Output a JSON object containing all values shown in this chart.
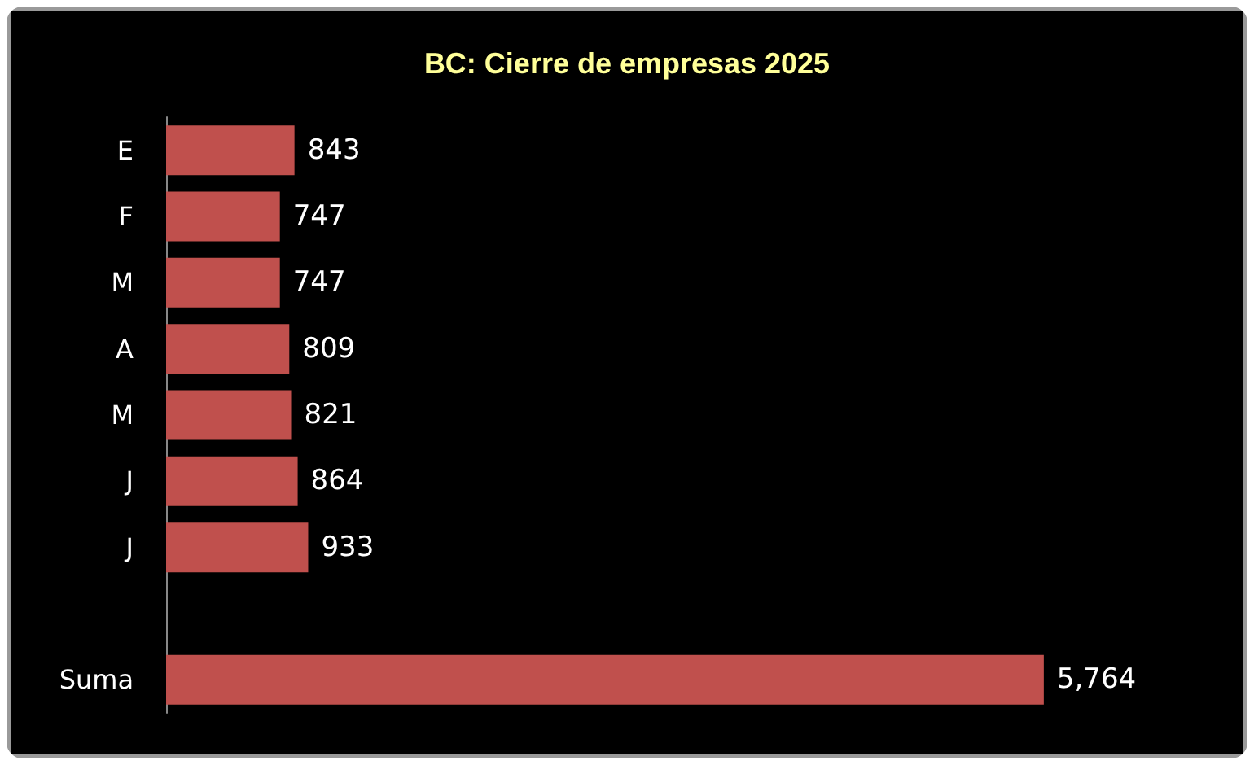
{
  "chart_data": {
    "type": "bar",
    "orientation": "horizontal",
    "title": "BC: Cierre de empresas 2025",
    "categories": [
      "E",
      "F",
      "M",
      "A",
      "M",
      "J",
      "J",
      null,
      "Suma"
    ],
    "values": [
      843,
      747,
      747,
      809,
      821,
      864,
      933,
      null,
      5764
    ],
    "value_labels": [
      "843",
      "747",
      "747",
      "809",
      "821",
      "864",
      "933",
      null,
      "5,764"
    ],
    "color": "#c0504d"
  }
}
